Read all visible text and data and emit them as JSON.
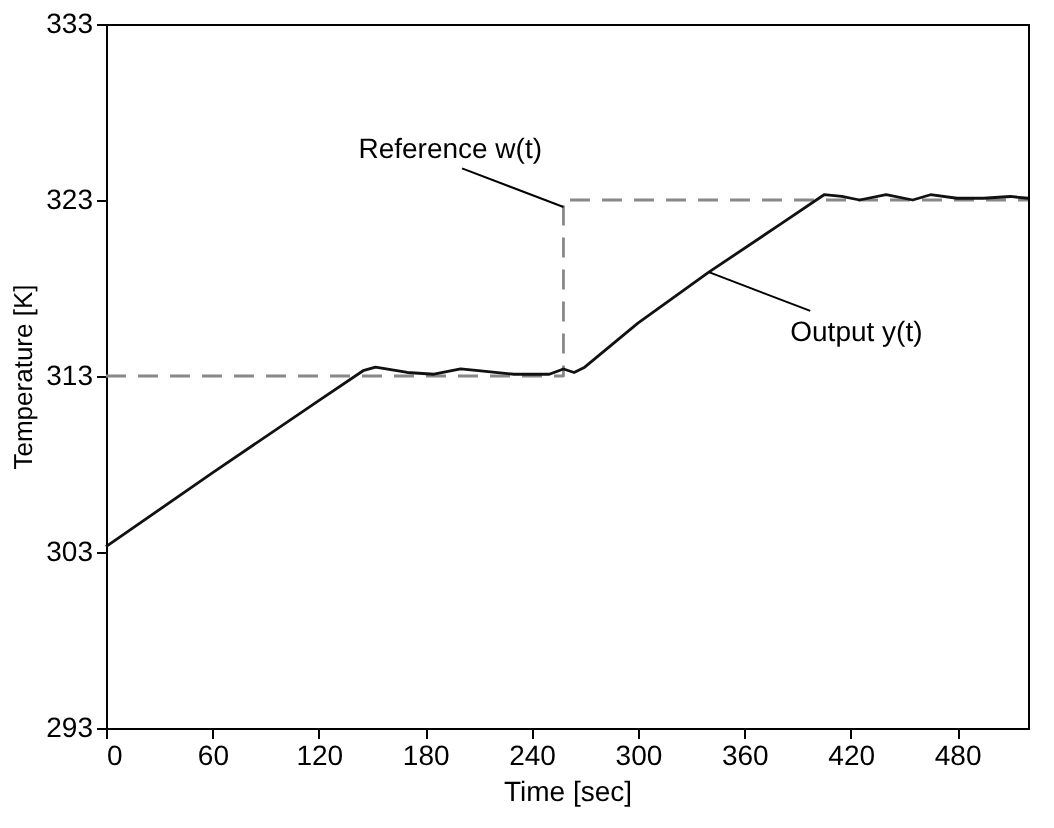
{
  "chart_data": {
    "type": "line",
    "xlabel": "Time [sec]",
    "ylabel": "Temperature [K]",
    "xlim": [
      0,
      520
    ],
    "ylim": [
      293,
      333
    ],
    "xticks": [
      0,
      60,
      120,
      180,
      240,
      300,
      360,
      420,
      480
    ],
    "yticks": [
      293,
      303,
      313,
      323,
      333
    ],
    "grid": false,
    "series": [
      {
        "color": "#888888",
        "line_style": "dashed",
        "x": [
          0,
          258,
          258,
          520
        ],
        "values": [
          313,
          313,
          323,
          323
        ]
      },
      {
        "color": "#111111",
        "line_style": "solid",
        "x": [
          0,
          60,
          120,
          145,
          152,
          170,
          185,
          200,
          210,
          230,
          250,
          258,
          264,
          270,
          300,
          340,
          380,
          405,
          415,
          425,
          440,
          455,
          465,
          480,
          495,
          510,
          520
        ],
        "values": [
          303.3,
          307.5,
          311.6,
          313.3,
          313.5,
          313.2,
          313.1,
          313.4,
          313.3,
          313.1,
          313.1,
          313.4,
          313.2,
          313.5,
          316.0,
          318.9,
          321.6,
          323.3,
          323.2,
          323.0,
          323.3,
          323.0,
          323.3,
          323.1,
          323.1,
          323.2,
          323.1
        ]
      }
    ],
    "annotations": [
      {
        "text": "Reference w(t)",
        "x": 258,
        "y": 322.6
      },
      {
        "text": "Output y(t)",
        "x": 340,
        "y": 318.9
      }
    ]
  }
}
